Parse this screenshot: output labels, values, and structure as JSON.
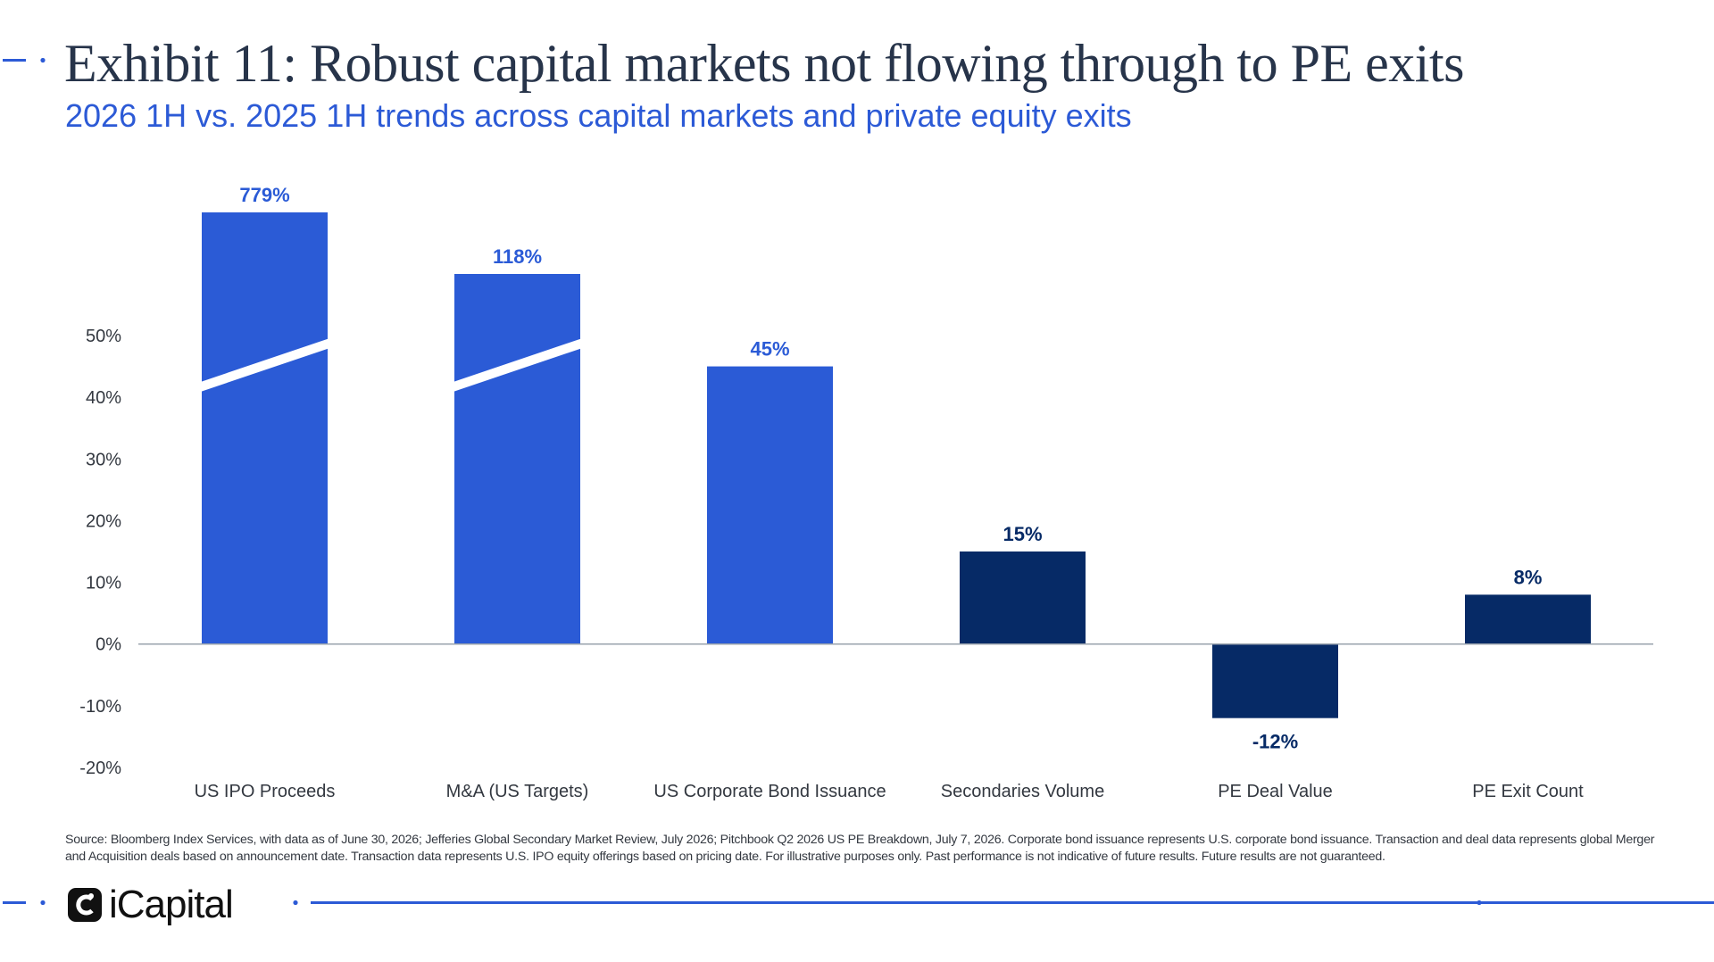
{
  "header": {
    "title": "Exhibit 11: Robust capital markets not flowing through to PE exits",
    "subtitle": "2026 1H vs. 2025 1H trends across capital markets and private equity exits"
  },
  "chart_data": {
    "type": "bar",
    "title": "Exhibit 11: Robust capital markets not flowing through to PE exits",
    "subtitle": "2026 1H vs. 2025 1H trends across capital markets and private equity exits",
    "categories": [
      "US IPO Proceeds",
      "M&A (US Targets)",
      "US Corporate Bond Issuance",
      "Secondaries Volume",
      "PE Deal Value",
      "PE Exit Count"
    ],
    "values": [
      779,
      118,
      45,
      15,
      -12,
      8
    ],
    "data_labels": [
      "779%",
      "118%",
      "45%",
      "15%",
      "-12%",
      "8%"
    ],
    "axis_broken": [
      true,
      true,
      false,
      false,
      false,
      false
    ],
    "bar_colors": [
      "#2b5bd6",
      "#2b5bd6",
      "#2b5bd6",
      "#062a66",
      "#062a66",
      "#062a66"
    ],
    "ylim": [
      -20,
      50
    ],
    "yticks": [
      -20,
      -10,
      0,
      10,
      20,
      30,
      40,
      50
    ],
    "ytick_labels": [
      "-20%",
      "-10%",
      "0%",
      "10%",
      "20%",
      "30%",
      "40%",
      "50%"
    ],
    "xlabel": "",
    "ylabel": "",
    "grid": false,
    "zero_line": true
  },
  "footer": {
    "source": "Source: Bloomberg Index Services, with data as of June 30, 2026; Jefferies Global Secondary Market Review, July 2026; Pitchbook Q2 2026 US PE Breakdown, July 7, 2026. Corporate bond issuance represents U.S. corporate bond issuance. Transaction and deal data represents global Merger and Acquisition deals based on announcement date. Transaction data represents U.S. IPO equity offerings based on pricing date. For illustrative purposes only. Past performance is not indicative of future results. Future results are not guaranteed.",
    "brand": "iCapital",
    "logo_icon": "icapital-logo-icon"
  },
  "colors": {
    "title": "#27344a",
    "accent": "#2c5ad6",
    "capital_markets_bar": "#2b5bd6",
    "pe_bar": "#062a66",
    "rule": "#2c5ad6"
  }
}
